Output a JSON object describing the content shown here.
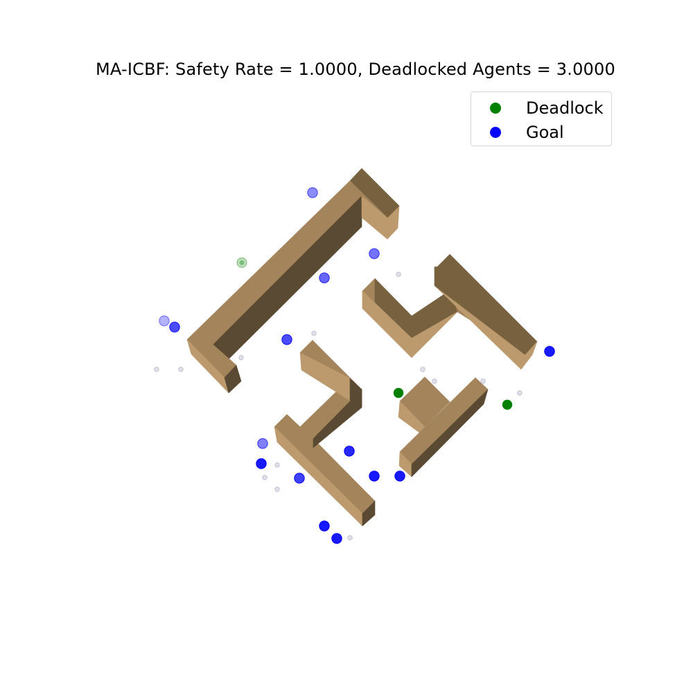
{
  "chart_data": {
    "type": "scatter",
    "title": "MA-ICBF: Safety Rate = 1.0000, Deadlocked Agents = 3.0000",
    "legend": {
      "placement": "top-right",
      "entries": [
        {
          "label": "Deadlock",
          "color": "#008000"
        },
        {
          "label": "Goal",
          "color": "#0000ff"
        }
      ]
    },
    "grid": false,
    "axes_visible": false,
    "colors": {
      "wall_top": "#a3845b",
      "wall_face_light": "#bc9a6d",
      "wall_face_dark": "#5b4a33",
      "wall_face_mid": "#77613f",
      "deadlock": "#008000",
      "goal": "#0000ff",
      "trail": "#c8c8d8"
    }
  }
}
